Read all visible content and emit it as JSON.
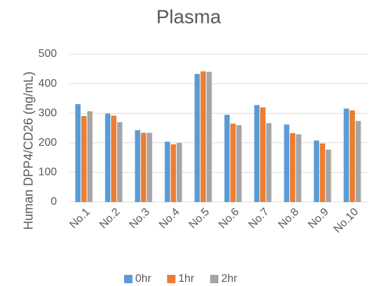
{
  "chart_data": {
    "type": "bar",
    "title": "Plasma",
    "y_label": "Human DPP4/CD26  (ng/mL)",
    "categories": [
      "No.1",
      "No.2",
      "No.3",
      "No.4",
      "No.5",
      "No.6",
      "No.7",
      "No.8",
      "No.9",
      "No.10"
    ],
    "series": [
      {
        "name": "0hr",
        "color": "#5b9bd5",
        "values": [
          331,
          299,
          243,
          204,
          433,
          295,
          328,
          262,
          208,
          316
        ]
      },
      {
        "name": "1hr",
        "color": "#ed7d31",
        "values": [
          291,
          292,
          234,
          195,
          442,
          265,
          320,
          233,
          198,
          310
        ]
      },
      {
        "name": "2hr",
        "color": "#a5a5a5",
        "values": [
          307,
          270,
          234,
          200,
          440,
          260,
          267,
          229,
          177,
          274
        ]
      }
    ],
    "ylim": [
      0,
      500
    ],
    "yticks": [
      0,
      100,
      200,
      300,
      400,
      500
    ],
    "grid": true,
    "legend": "bottom"
  }
}
